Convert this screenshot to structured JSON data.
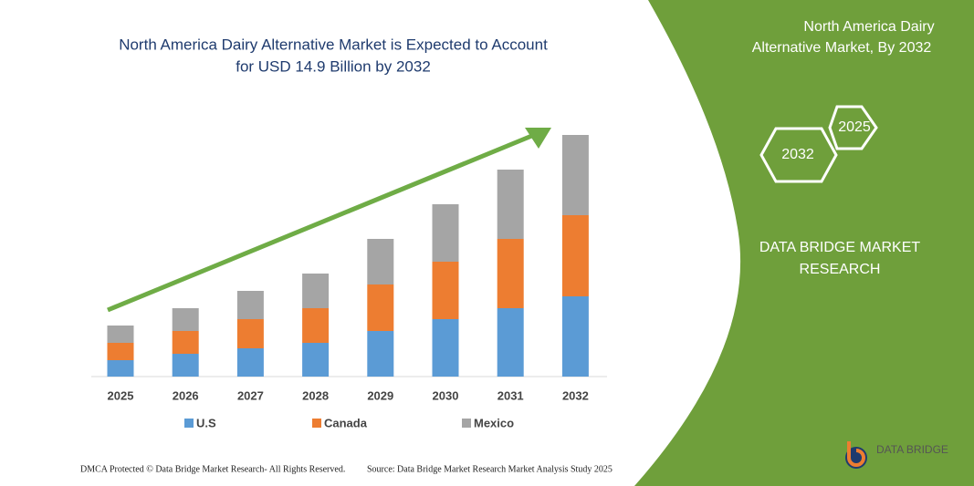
{
  "chart_data": {
    "type": "stacked_bar",
    "title": [
      "North America Dairy Alternative Market is Expected to Account",
      "for  USD 14.9 Billion by 2032"
    ],
    "categories": [
      "2025",
      "2026",
      "2027",
      "2028",
      "2029",
      "2030",
      "2031",
      "2032"
    ],
    "series": [
      {
        "name": "U.S",
        "color": "#5b9bd5",
        "values": [
          18,
          25,
          31,
          37,
          50,
          63,
          75,
          88
        ]
      },
      {
        "name": "Canada",
        "color": "#ed7d31",
        "values": [
          19,
          25,
          32,
          38,
          51,
          63,
          76,
          89
        ]
      },
      {
        "name": "Mexico",
        "color": "#a5a5a5",
        "values": [
          19,
          25,
          31,
          38,
          50,
          63,
          76,
          88
        ]
      }
    ],
    "ylim": [
      0,
      265
    ]
  },
  "panel": {
    "title": [
      "North America Dairy",
      "Alternative Market, By 2032"
    ],
    "hexagons": [
      "2025",
      "2032"
    ],
    "brand": [
      "DATA BRIDGE MARKET",
      "RESEARCH"
    ]
  },
  "footer": {
    "left": "DMCA Protected © Data Bridge Market Research-  All Rights Reserved.",
    "right": "Source: Data Bridge Market Research  Market Analysis Study 2025"
  },
  "logo": "DATA BRIDGE"
}
